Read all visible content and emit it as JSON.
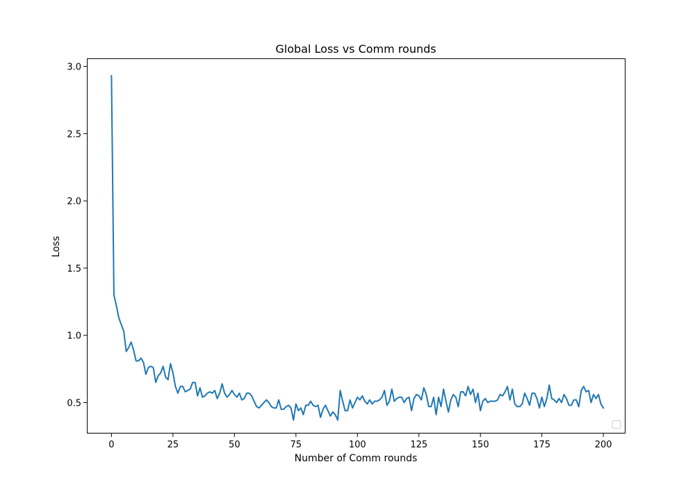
{
  "chart_data": {
    "type": "line",
    "title": "Global Loss vs Comm rounds",
    "xlabel": "Number of Comm rounds",
    "ylabel": "Loss",
    "xlim": [
      -10,
      209
    ],
    "ylim": [
      0.27,
      3.06
    ],
    "xticks": [
      0,
      25,
      50,
      75,
      100,
      125,
      150,
      175,
      200
    ],
    "yticks": [
      0.5,
      1.0,
      1.5,
      2.0,
      2.5,
      3.0
    ],
    "ytick_labels": [
      "0.5",
      "1.0",
      "1.5",
      "2.0",
      "2.5",
      "3.0"
    ],
    "grid": false,
    "legend": "lower right, empty",
    "series": [
      {
        "color": "#1f77b4",
        "x_start": 0,
        "x_step": 1,
        "values": [
          2.93,
          1.3,
          1.22,
          1.13,
          1.08,
          1.03,
          0.88,
          0.91,
          0.95,
          0.89,
          0.81,
          0.81,
          0.83,
          0.8,
          0.71,
          0.76,
          0.77,
          0.76,
          0.65,
          0.7,
          0.72,
          0.77,
          0.69,
          0.67,
          0.79,
          0.72,
          0.62,
          0.57,
          0.62,
          0.62,
          0.58,
          0.59,
          0.6,
          0.65,
          0.65,
          0.55,
          0.61,
          0.54,
          0.55,
          0.57,
          0.58,
          0.57,
          0.59,
          0.53,
          0.57,
          0.64,
          0.57,
          0.54,
          0.56,
          0.59,
          0.56,
          0.54,
          0.57,
          0.52,
          0.53,
          0.57,
          0.57,
          0.55,
          0.51,
          0.47,
          0.46,
          0.48,
          0.5,
          0.52,
          0.5,
          0.47,
          0.46,
          0.46,
          0.52,
          0.45,
          0.45,
          0.47,
          0.48,
          0.46,
          0.37,
          0.49,
          0.44,
          0.46,
          0.41,
          0.48,
          0.48,
          0.51,
          0.48,
          0.47,
          0.48,
          0.39,
          0.45,
          0.48,
          0.44,
          0.4,
          0.43,
          0.41,
          0.37,
          0.59,
          0.51,
          0.44,
          0.44,
          0.52,
          0.46,
          0.5,
          0.54,
          0.52,
          0.55,
          0.51,
          0.49,
          0.52,
          0.49,
          0.51,
          0.51,
          0.52,
          0.54,
          0.59,
          0.48,
          0.51,
          0.6,
          0.51,
          0.53,
          0.54,
          0.54,
          0.5,
          0.53,
          0.54,
          0.44,
          0.53,
          0.56,
          0.55,
          0.52,
          0.61,
          0.56,
          0.47,
          0.47,
          0.54,
          0.41,
          0.54,
          0.47,
          0.6,
          0.51,
          0.43,
          0.52,
          0.56,
          0.54,
          0.47,
          0.58,
          0.58,
          0.55,
          0.62,
          0.56,
          0.6,
          0.5,
          0.57,
          0.44,
          0.51,
          0.53,
          0.5,
          0.51,
          0.51,
          0.51,
          0.52,
          0.56,
          0.55,
          0.58,
          0.62,
          0.52,
          0.6,
          0.49,
          0.47,
          0.47,
          0.49,
          0.57,
          0.53,
          0.48,
          0.57,
          0.57,
          0.53,
          0.46,
          0.54,
          0.47,
          0.53,
          0.63,
          0.53,
          0.52,
          0.5,
          0.53,
          0.5,
          0.56,
          0.53,
          0.48,
          0.48,
          0.52,
          0.52,
          0.47,
          0.59,
          0.62,
          0.58,
          0.59,
          0.5,
          0.56,
          0.53,
          0.56,
          0.49,
          0.46
        ]
      }
    ]
  }
}
